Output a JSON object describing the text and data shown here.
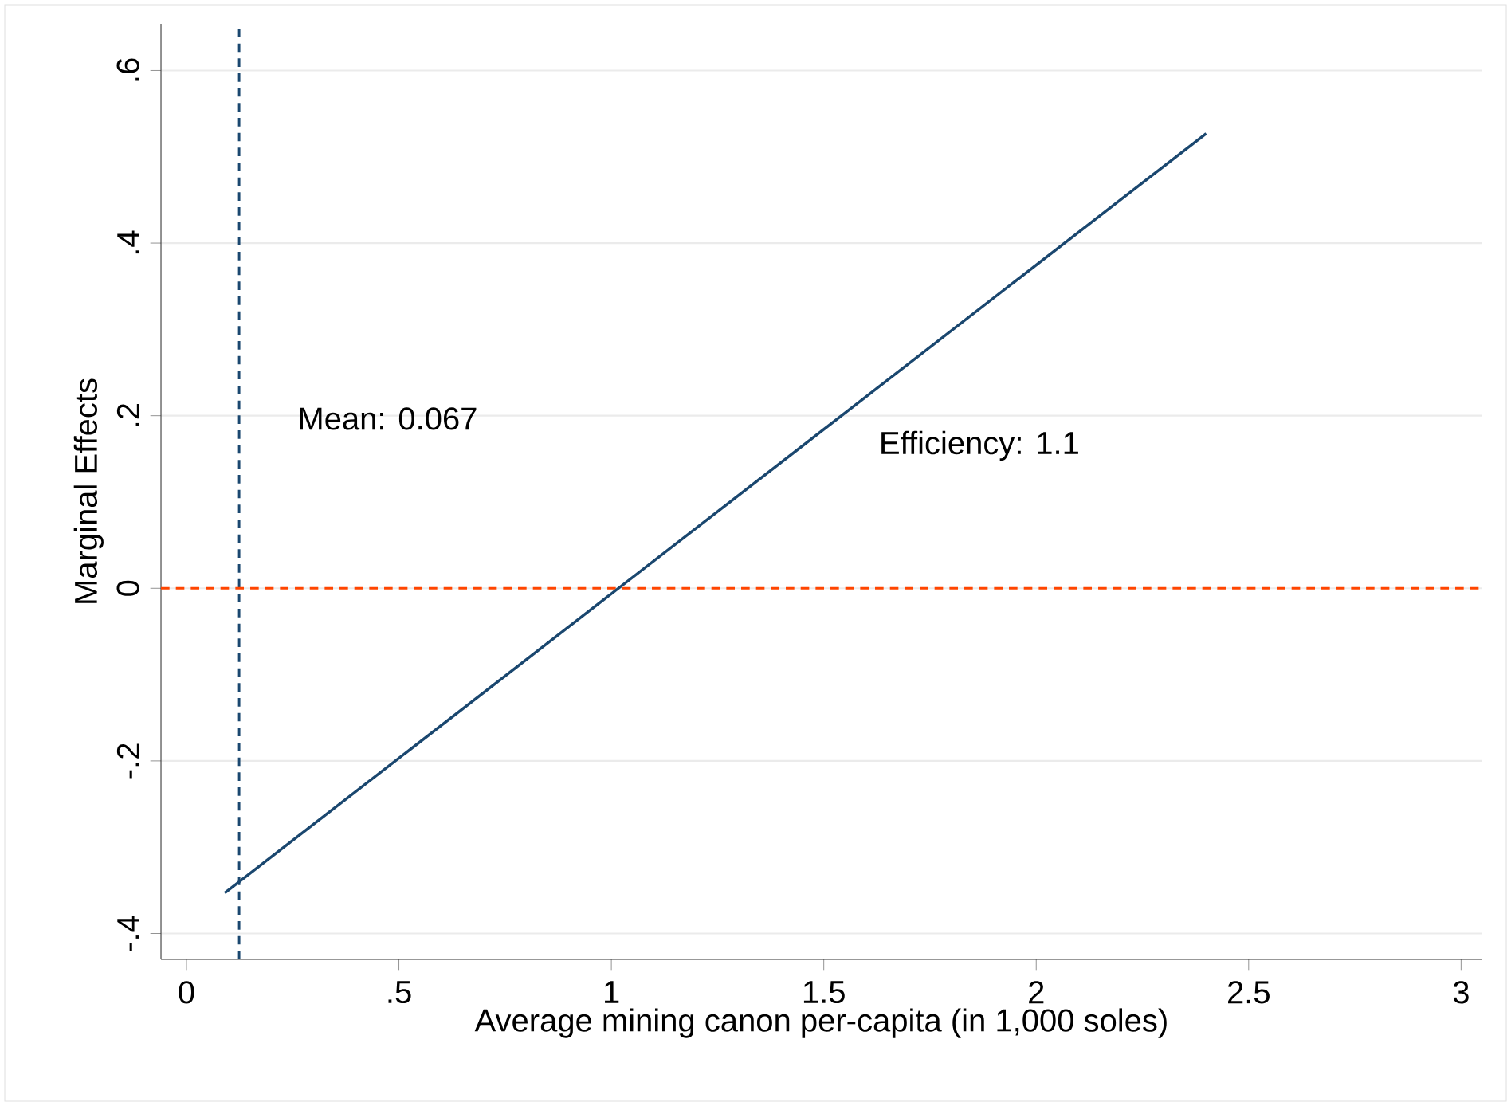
{
  "chart_data": {
    "type": "line",
    "xlabel": "Average mining canon per-capita (in 1,000 soles)",
    "ylabel": "Marginal Effects",
    "xlim": [
      -0.06,
      3.05
    ],
    "ylim": [
      -0.43,
      0.654
    ],
    "xticks": [
      0,
      {
        "value": 0.5,
        "label": ".5"
      },
      1,
      1.5,
      2,
      2.5,
      3
    ],
    "yticks": [
      {
        "value": -0.4,
        "label": "-.4"
      },
      {
        "value": -0.2,
        "label": "-.2"
      },
      0,
      {
        "value": 0.2,
        "label": ".2"
      },
      {
        "value": 0.4,
        "label": ".4"
      },
      {
        "value": 0.6,
        "label": ".6"
      }
    ],
    "grid": "y",
    "marker": "none",
    "line_style": "solid",
    "series": [
      {
        "color": "#1a476f",
        "x": [
          0.09,
          2.4
        ],
        "values": [
          -0.353,
          0.527
        ]
      }
    ],
    "ref_lines": [
      {
        "axis": "x",
        "value": 0.124,
        "color": "#1a476f",
        "line_style": "dashed"
      },
      {
        "axis": "y",
        "value": 0,
        "color": "#ff4500",
        "line_style": "dashed"
      }
    ],
    "annotations": [
      "Mean: 0.067",
      "Efficiency: 1.1"
    ]
  }
}
